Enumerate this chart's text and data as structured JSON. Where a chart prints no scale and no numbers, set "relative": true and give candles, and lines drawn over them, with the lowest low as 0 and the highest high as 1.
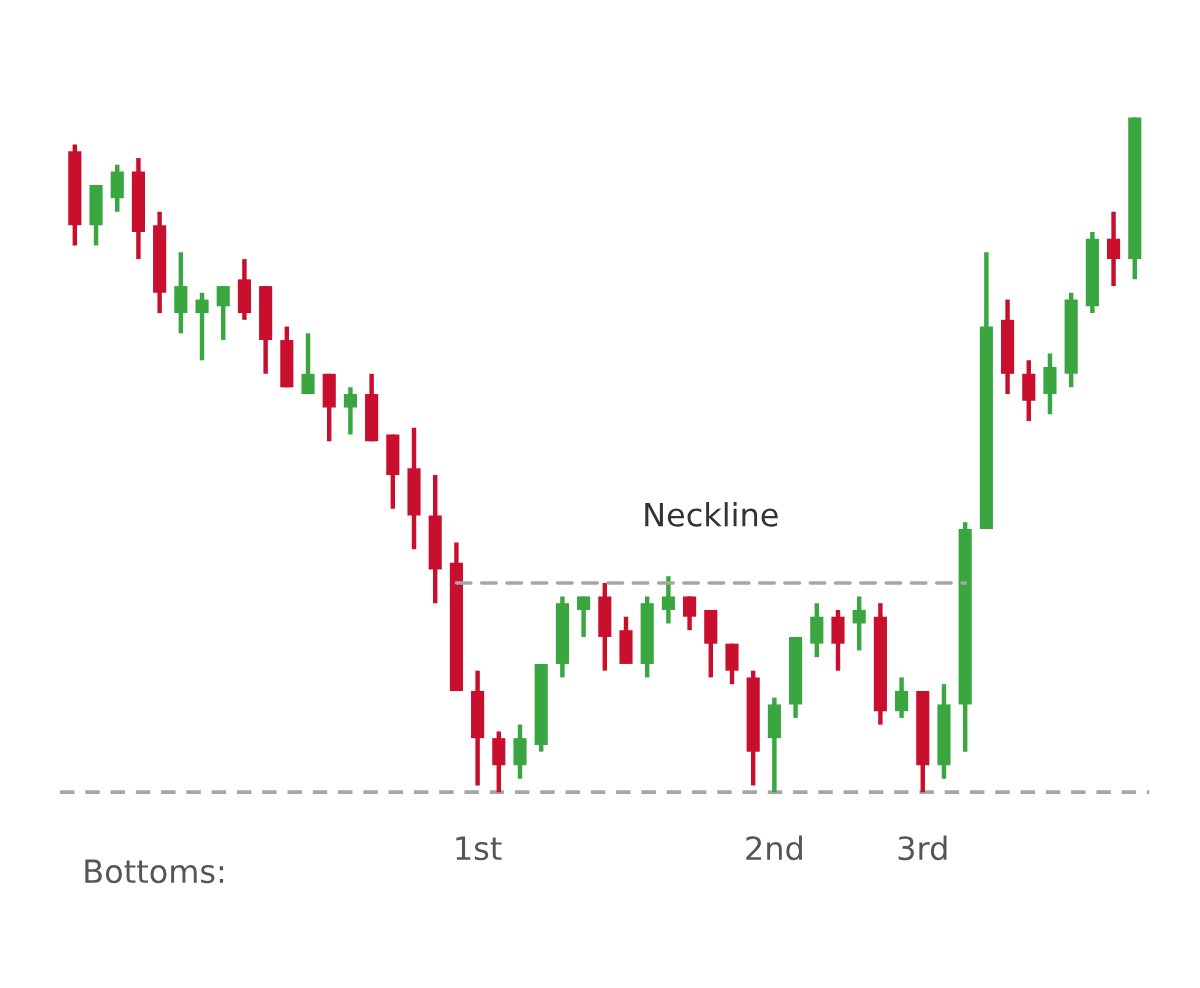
{
  "chart_data": {
    "type": "candlestick",
    "relative": true,
    "categories": [
      null,
      null,
      null,
      null,
      null,
      null,
      null,
      null,
      null,
      null,
      null,
      null,
      null,
      null,
      null,
      null,
      null,
      null,
      null,
      "1st",
      null,
      null,
      null,
      null,
      null,
      null,
      null,
      null,
      null,
      null,
      null,
      null,
      null,
      "2nd",
      null,
      null,
      null,
      null,
      null,
      null,
      "3rd",
      null,
      null,
      null,
      null,
      null,
      null,
      null,
      null,
      null,
      null
    ],
    "ohlc": [
      [
        0.95,
        0.96,
        0.81,
        0.84
      ],
      [
        0.84,
        0.9,
        0.81,
        0.9
      ],
      [
        0.88,
        0.93,
        0.86,
        0.92
      ],
      [
        0.92,
        0.94,
        0.79,
        0.83
      ],
      [
        0.84,
        0.86,
        0.71,
        0.74
      ],
      [
        0.71,
        0.8,
        0.68,
        0.75
      ],
      [
        0.71,
        0.74,
        0.64,
        0.73
      ],
      [
        0.72,
        0.75,
        0.67,
        0.75
      ],
      [
        0.76,
        0.79,
        0.7,
        0.71
      ],
      [
        0.75,
        0.75,
        0.62,
        0.67
      ],
      [
        0.67,
        0.69,
        0.6,
        0.6
      ],
      [
        0.59,
        0.68,
        0.59,
        0.62
      ],
      [
        0.62,
        0.62,
        0.52,
        0.57
      ],
      [
        0.57,
        0.6,
        0.53,
        0.59
      ],
      [
        0.59,
        0.62,
        0.52,
        0.52
      ],
      [
        0.53,
        0.53,
        0.42,
        0.47
      ],
      [
        0.48,
        0.54,
        0.36,
        0.41
      ],
      [
        0.41,
        0.47,
        0.28,
        0.33
      ],
      [
        0.34,
        0.37,
        0.15,
        0.15
      ],
      [
        0.15,
        0.18,
        0.01,
        0.08
      ],
      [
        0.08,
        0.09,
        0.0,
        0.04
      ],
      [
        0.04,
        0.1,
        0.02,
        0.08
      ],
      [
        0.07,
        0.19,
        0.06,
        0.19
      ],
      [
        0.19,
        0.29,
        0.17,
        0.28
      ],
      [
        0.27,
        0.29,
        0.23,
        0.29
      ],
      [
        0.29,
        0.31,
        0.18,
        0.23
      ],
      [
        0.24,
        0.26,
        0.19,
        0.19
      ],
      [
        0.19,
        0.29,
        0.17,
        0.28
      ],
      [
        0.27,
        0.32,
        0.25,
        0.29
      ],
      [
        0.29,
        0.29,
        0.24,
        0.26
      ],
      [
        0.27,
        0.27,
        0.17,
        0.22
      ],
      [
        0.22,
        0.22,
        0.16,
        0.18
      ],
      [
        0.17,
        0.18,
        0.01,
        0.06
      ],
      [
        0.08,
        0.14,
        0.0,
        0.13
      ],
      [
        0.13,
        0.23,
        0.11,
        0.23
      ],
      [
        0.22,
        0.28,
        0.2,
        0.26
      ],
      [
        0.26,
        0.27,
        0.18,
        0.22
      ],
      [
        0.25,
        0.29,
        0.21,
        0.27
      ],
      [
        0.26,
        0.28,
        0.1,
        0.12
      ],
      [
        0.12,
        0.17,
        0.11,
        0.15
      ],
      [
        0.15,
        0.15,
        0.0,
        0.04
      ],
      [
        0.04,
        0.16,
        0.02,
        0.13
      ],
      [
        0.13,
        0.4,
        0.06,
        0.39
      ],
      [
        0.39,
        0.8,
        0.39,
        0.69
      ],
      [
        0.7,
        0.73,
        0.59,
        0.62
      ],
      [
        0.62,
        0.64,
        0.55,
        0.58
      ],
      [
        0.59,
        0.65,
        0.56,
        0.63
      ],
      [
        0.62,
        0.74,
        0.6,
        0.73
      ],
      [
        0.72,
        0.83,
        0.71,
        0.82
      ],
      [
        0.82,
        0.86,
        0.75,
        0.79
      ],
      [
        0.79,
        1.0,
        0.76,
        1.0
      ]
    ],
    "colors": [
      "#c8102e",
      "#3aa640",
      "#3aa640",
      "#c8102e",
      "#c8102e",
      "#3aa640",
      "#3aa640",
      "#3aa640",
      "#c8102e",
      "#c8102e",
      "#c8102e",
      "#3aa640",
      "#c8102e",
      "#3aa640",
      "#c8102e",
      "#c8102e",
      "#c8102e",
      "#c8102e",
      "#c8102e",
      "#c8102e",
      "#c8102e",
      "#3aa640",
      "#3aa640",
      "#3aa640",
      "#3aa640",
      "#c8102e",
      "#c8102e",
      "#3aa640",
      "#3aa640",
      "#c8102e",
      "#c8102e",
      "#c8102e",
      "#c8102e",
      "#3aa640",
      "#3aa640",
      "#3aa640",
      "#c8102e",
      "#3aa640",
      "#c8102e",
      "#3aa640",
      "#c8102e",
      "#3aa640",
      "#3aa640",
      "#3aa640",
      "#c8102e",
      "#c8102e",
      "#3aa640",
      "#3aa640",
      "#3aa640",
      "#c8102e",
      "#3aa640"
    ],
    "series": [
      {
        "type": "line",
        "name": "Neckline",
        "color": "#a6a6a6",
        "line_style": "dashed",
        "values": [
          null,
          null,
          null,
          null,
          null,
          null,
          null,
          null,
          null,
          null,
          null,
          null,
          null,
          null,
          null,
          null,
          null,
          null,
          0.31,
          0.31,
          0.31,
          0.31,
          0.31,
          0.31,
          0.31,
          0.31,
          0.31,
          0.31,
          0.31,
          0.31,
          0.31,
          0.31,
          0.31,
          0.31,
          0.31,
          0.31,
          0.31,
          0.31,
          0.31,
          0.31,
          0.31,
          0.31,
          0.31,
          null,
          null,
          null,
          null,
          null,
          null,
          null,
          null
        ]
      }
    ],
    "ref_lines": [
      {
        "axis": "y",
        "value": 0,
        "label": null,
        "color": "#a6a6a6",
        "line_style": "dashed"
      }
    ],
    "annotations": [
      "Bottoms:"
    ],
    "legend": false
  }
}
